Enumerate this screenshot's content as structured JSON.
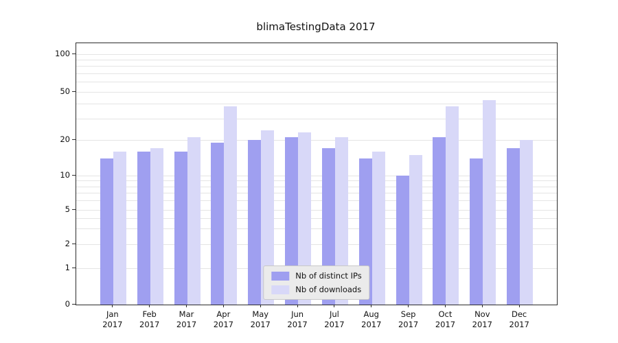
{
  "title": "blimaTestingData 2017",
  "chart_data": {
    "type": "bar",
    "title": "blimaTestingData 2017",
    "categories": [
      "Jan",
      "Feb",
      "Mar",
      "Apr",
      "May",
      "Jun",
      "Jul",
      "Aug",
      "Sep",
      "Oct",
      "Nov",
      "Dec"
    ],
    "year": "2017",
    "series": [
      {
        "name": "Nb of distinct IPs",
        "color": "#9f9ff0",
        "values": [
          14,
          16,
          16,
          19,
          20,
          21,
          17,
          14,
          10,
          21,
          14,
          17
        ]
      },
      {
        "name": "Nb of downloads",
        "color": "#d8d8f8",
        "values": [
          16,
          17,
          21,
          38,
          24,
          23,
          21,
          16,
          15,
          38,
          43,
          20
        ]
      }
    ],
    "yscale": "symlog",
    "yticks": [
      0,
      1,
      2,
      5,
      10,
      20,
      50,
      100
    ],
    "grid_values": [
      1,
      2,
      3,
      4,
      5,
      6,
      7,
      8,
      9,
      10,
      20,
      30,
      40,
      50,
      60,
      70,
      80,
      90,
      100
    ],
    "ylim": [
      0,
      130
    ],
    "grid": "horizontal",
    "legend_position": "lower center"
  }
}
